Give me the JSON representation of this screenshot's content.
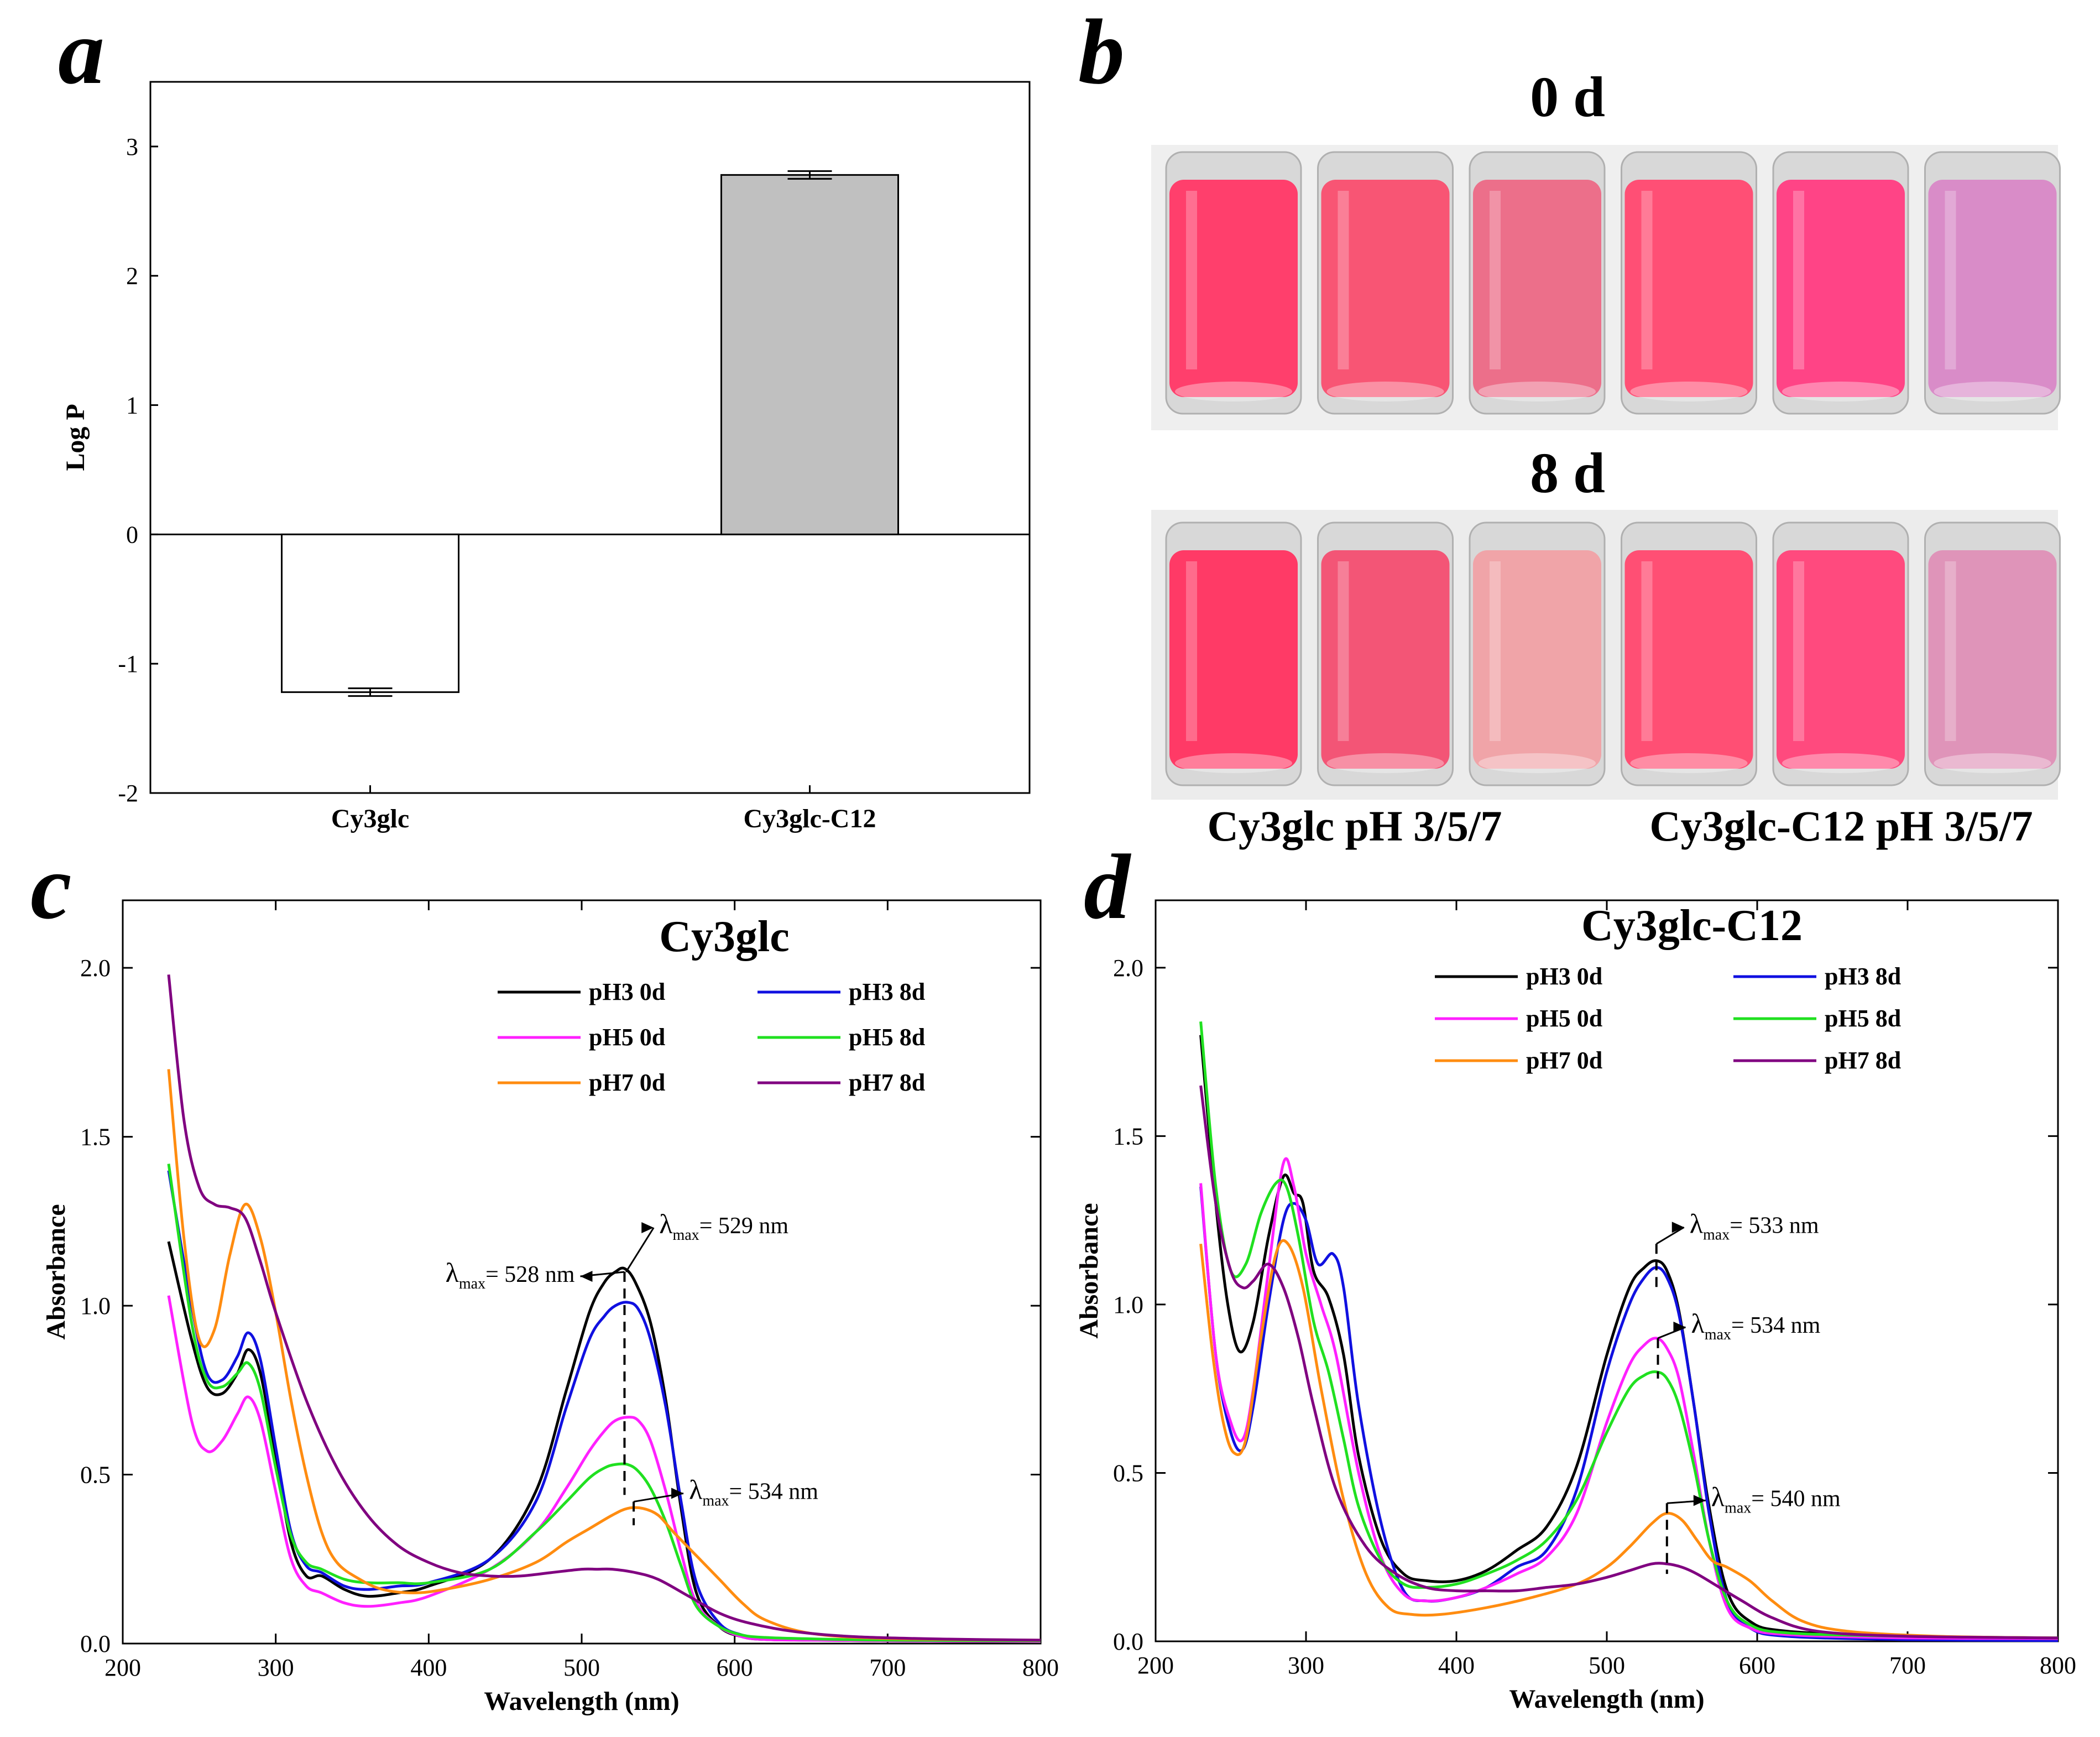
{
  "panels": {
    "a": "a",
    "b": "b",
    "c": "c",
    "d": "d"
  },
  "colors": {
    "pH3_0d": "#000000",
    "pH3_8d": "#1010e0",
    "pH5_0d": "#ff20ff",
    "pH5_8d": "#20e020",
    "pH7_0d": "#ff8c10",
    "pH7_8d": "#800080"
  },
  "photo": {
    "label_0d": "0 d",
    "label_8d": "8 d",
    "caption_left": "Cy3glc pH 3/5/7",
    "caption_right": "Cy3glc-C12 pH 3/5/7",
    "vials_0d": [
      "#ff3f6c",
      "#f85574",
      "#ec6f8a",
      "#ff4f75",
      "#ff4486",
      "#d98cc8"
    ],
    "vials_8d": [
      "#ff3a66",
      "#f35576",
      "#f0a4a8",
      "#ff4f74",
      "#ff4a7e",
      "#df94b9"
    ]
  },
  "chart_data": [
    {
      "id": "a",
      "type": "bar",
      "title": "",
      "xlabel": "",
      "ylabel": "Log P",
      "ylim": [
        -2,
        3.5
      ],
      "yticks": [
        "-2",
        "-1",
        "0",
        "1",
        "2",
        "3"
      ],
      "categories": [
        "Cy3glc",
        "Cy3glc-C12"
      ],
      "values": [
        -1.22,
        2.78
      ],
      "errors": [
        0.03,
        0.03
      ],
      "bar_colors": [
        "#ffffff",
        "#c0c0c0"
      ]
    },
    {
      "id": "c",
      "type": "line",
      "title": "Cy3glc",
      "xlabel": "Wavelength (nm)",
      "ylabel": "Absorbance",
      "xlim": [
        200,
        800
      ],
      "ylim": [
        0,
        2.2
      ],
      "xticks": [
        "200",
        "300",
        "400",
        "500",
        "600",
        "700",
        "800"
      ],
      "yticks": [
        "0.0",
        "0.5",
        "1.0",
        "1.5",
        "2.0"
      ],
      "annotations": [
        {
          "prefix": "λ",
          "sub": "max",
          "suffix": "= 528 nm",
          "x": 528,
          "y": 1.1
        },
        {
          "prefix": "λ",
          "sub": "max",
          "suffix": "= 529 nm",
          "x": 529,
          "y": 1.1
        },
        {
          "prefix": "λ",
          "sub": "max",
          "suffix": "= 534 nm",
          "x": 534,
          "y": 0.42
        }
      ],
      "series": [
        {
          "name": "pH3 0d",
          "color_key": "pH3_0d",
          "x": [
            230,
            245,
            255,
            265,
            275,
            282,
            290,
            300,
            310,
            320,
            330,
            345,
            360,
            380,
            400,
            440,
            470,
            490,
            505,
            515,
            522,
            528,
            535,
            545,
            555,
            565,
            575,
            590,
            605,
            620,
            650,
            700,
            800
          ],
          "y": [
            1.19,
            0.9,
            0.76,
            0.74,
            0.8,
            0.87,
            0.8,
            0.55,
            0.3,
            0.2,
            0.2,
            0.16,
            0.14,
            0.15,
            0.17,
            0.25,
            0.45,
            0.75,
            0.98,
            1.07,
            1.1,
            1.11,
            1.07,
            0.95,
            0.72,
            0.4,
            0.15,
            0.05,
            0.02,
            0.012,
            0.01,
            0.008,
            0.006
          ]
        },
        {
          "name": "pH3 8d",
          "color_key": "pH3_8d",
          "x": [
            230,
            245,
            255,
            265,
            275,
            282,
            290,
            300,
            310,
            320,
            330,
            345,
            360,
            380,
            400,
            440,
            470,
            490,
            505,
            515,
            522,
            530,
            537,
            545,
            555,
            565,
            575,
            590,
            605,
            620,
            650,
            700,
            800
          ],
          "y": [
            1.4,
            1.0,
            0.8,
            0.78,
            0.85,
            0.92,
            0.84,
            0.58,
            0.33,
            0.23,
            0.21,
            0.17,
            0.16,
            0.17,
            0.18,
            0.25,
            0.42,
            0.7,
            0.9,
            0.97,
            1.0,
            1.01,
            0.99,
            0.9,
            0.7,
            0.42,
            0.18,
            0.06,
            0.025,
            0.015,
            0.012,
            0.01,
            0.008
          ]
        },
        {
          "name": "pH5 0d",
          "color_key": "pH5_0d",
          "x": [
            230,
            245,
            255,
            265,
            275,
            282,
            290,
            300,
            310,
            320,
            330,
            345,
            360,
            380,
            400,
            440,
            470,
            490,
            505,
            515,
            522,
            530,
            537,
            545,
            555,
            565,
            575,
            590,
            605,
            620,
            650,
            700,
            800
          ],
          "y": [
            1.03,
            0.66,
            0.57,
            0.6,
            0.68,
            0.73,
            0.66,
            0.45,
            0.25,
            0.17,
            0.15,
            0.12,
            0.11,
            0.12,
            0.14,
            0.22,
            0.33,
            0.46,
            0.57,
            0.63,
            0.66,
            0.67,
            0.66,
            0.6,
            0.45,
            0.27,
            0.12,
            0.05,
            0.02,
            0.012,
            0.01,
            0.008,
            0.006
          ]
        },
        {
          "name": "pH5 8d",
          "color_key": "pH5_8d",
          "x": [
            230,
            245,
            255,
            265,
            275,
            282,
            290,
            300,
            310,
            320,
            330,
            345,
            360,
            380,
            400,
            440,
            470,
            490,
            505,
            515,
            522,
            530,
            537,
            545,
            555,
            565,
            575,
            590,
            605,
            620,
            650,
            700,
            800
          ],
          "y": [
            1.42,
            0.95,
            0.78,
            0.76,
            0.8,
            0.83,
            0.75,
            0.52,
            0.32,
            0.24,
            0.22,
            0.19,
            0.18,
            0.18,
            0.18,
            0.22,
            0.33,
            0.42,
            0.49,
            0.52,
            0.53,
            0.53,
            0.51,
            0.46,
            0.36,
            0.23,
            0.11,
            0.05,
            0.025,
            0.018,
            0.014,
            0.01,
            0.008
          ]
        },
        {
          "name": "pH7 0d",
          "color_key": "pH7_0d",
          "x": [
            230,
            240,
            250,
            260,
            270,
            280,
            290,
            300,
            310,
            320,
            330,
            340,
            355,
            370,
            390,
            410,
            440,
            470,
            490,
            505,
            520,
            530,
            540,
            550,
            560,
            575,
            590,
            605,
            620,
            650,
            700,
            800
          ],
          "y": [
            1.7,
            1.2,
            0.9,
            0.93,
            1.15,
            1.3,
            1.2,
            0.98,
            0.72,
            0.5,
            0.33,
            0.24,
            0.19,
            0.16,
            0.15,
            0.16,
            0.19,
            0.24,
            0.3,
            0.34,
            0.38,
            0.4,
            0.4,
            0.38,
            0.33,
            0.26,
            0.19,
            0.12,
            0.07,
            0.03,
            0.015,
            0.01
          ]
        },
        {
          "name": "pH7 8d",
          "color_key": "pH7_8d",
          "x": [
            230,
            240,
            250,
            260,
            270,
            280,
            290,
            300,
            320,
            340,
            360,
            380,
            400,
            420,
            440,
            460,
            480,
            500,
            510,
            520,
            535,
            550,
            570,
            590,
            610,
            640,
            680,
            740,
            800
          ],
          "y": [
            1.98,
            1.55,
            1.35,
            1.3,
            1.29,
            1.26,
            1.13,
            0.98,
            0.72,
            0.52,
            0.38,
            0.29,
            0.24,
            0.21,
            0.2,
            0.2,
            0.21,
            0.22,
            0.22,
            0.22,
            0.21,
            0.19,
            0.14,
            0.09,
            0.06,
            0.035,
            0.02,
            0.013,
            0.01
          ]
        }
      ],
      "legend": [
        "pH3 0d",
        "pH3 8d",
        "pH5 0d",
        "pH5 8d",
        "pH7 0d",
        "pH7 8d"
      ]
    },
    {
      "id": "d",
      "type": "line",
      "title": "Cy3glc-C12",
      "xlabel": "Wavelength (nm)",
      "ylabel": "Absorbance",
      "xlim": [
        200,
        800
      ],
      "ylim": [
        0,
        2.2
      ],
      "xticks": [
        "200",
        "300",
        "400",
        "500",
        "600",
        "700",
        "800"
      ],
      "yticks": [
        "0.0",
        "0.5",
        "1.0",
        "1.5",
        "2.0"
      ],
      "annotations": [
        {
          "prefix": "λ",
          "sub": "max",
          "suffix": "= 533 nm",
          "x": 533,
          "y": 1.18
        },
        {
          "prefix": "λ",
          "sub": "max",
          "suffix": "= 534 nm",
          "x": 534,
          "y": 0.9
        },
        {
          "prefix": "λ",
          "sub": "max",
          "suffix": "= 540 nm",
          "x": 540,
          "y": 0.41
        }
      ],
      "series": [
        {
          "name": "pH3 0d",
          "color_key": "pH3_0d",
          "x": [
            230,
            240,
            248,
            256,
            265,
            275,
            285,
            292,
            298,
            305,
            315,
            325,
            335,
            350,
            365,
            380,
            400,
            420,
            440,
            460,
            480,
            500,
            515,
            525,
            533,
            540,
            548,
            558,
            568,
            580,
            595,
            620,
            700,
            800
          ],
          "y": [
            1.8,
            1.3,
            1.0,
            0.86,
            0.95,
            1.2,
            1.38,
            1.33,
            1.3,
            1.1,
            1.02,
            0.85,
            0.55,
            0.3,
            0.2,
            0.18,
            0.18,
            0.21,
            0.27,
            0.34,
            0.52,
            0.85,
            1.05,
            1.11,
            1.13,
            1.1,
            0.98,
            0.7,
            0.4,
            0.15,
            0.06,
            0.03,
            0.015,
            0.01
          ]
        },
        {
          "name": "pH3 8d",
          "color_key": "pH3_8d",
          "x": [
            230,
            240,
            250,
            258,
            265,
            275,
            285,
            292,
            300,
            308,
            318,
            325,
            335,
            350,
            365,
            380,
            400,
            420,
            440,
            460,
            480,
            500,
            515,
            525,
            533,
            540,
            548,
            558,
            568,
            580,
            595,
            620,
            700,
            800
          ],
          "y": [
            1.35,
            0.85,
            0.62,
            0.57,
            0.7,
            1.0,
            1.25,
            1.3,
            1.25,
            1.12,
            1.15,
            1.05,
            0.7,
            0.35,
            0.15,
            0.12,
            0.13,
            0.16,
            0.22,
            0.27,
            0.45,
            0.8,
            1.0,
            1.08,
            1.11,
            1.08,
            0.97,
            0.7,
            0.38,
            0.12,
            0.04,
            0.015,
            0.005,
            0.002
          ]
        },
        {
          "name": "pH5 0d",
          "color_key": "pH5_0d",
          "x": [
            230,
            240,
            250,
            258,
            265,
            275,
            285,
            292,
            300,
            310,
            320,
            335,
            350,
            365,
            380,
            400,
            420,
            440,
            460,
            480,
            500,
            515,
            525,
            533,
            540,
            548,
            558,
            568,
            580,
            595,
            620,
            700,
            800
          ],
          "y": [
            1.36,
            0.85,
            0.65,
            0.6,
            0.75,
            1.1,
            1.42,
            1.35,
            1.15,
            1.0,
            0.85,
            0.5,
            0.25,
            0.14,
            0.12,
            0.13,
            0.16,
            0.2,
            0.25,
            0.38,
            0.65,
            0.82,
            0.88,
            0.9,
            0.87,
            0.78,
            0.55,
            0.3,
            0.1,
            0.04,
            0.02,
            0.01,
            0.008
          ]
        },
        {
          "name": "pH5 8d",
          "color_key": "pH5_8d",
          "x": [
            230,
            240,
            250,
            260,
            270,
            280,
            287,
            295,
            305,
            315,
            325,
            335,
            350,
            365,
            380,
            400,
            420,
            440,
            460,
            480,
            500,
            515,
            525,
            533,
            540,
            548,
            558,
            568,
            580,
            595,
            620,
            700,
            800
          ],
          "y": [
            1.84,
            1.35,
            1.1,
            1.12,
            1.27,
            1.36,
            1.35,
            1.2,
            0.95,
            0.8,
            0.6,
            0.4,
            0.24,
            0.17,
            0.16,
            0.17,
            0.2,
            0.24,
            0.3,
            0.42,
            0.62,
            0.75,
            0.79,
            0.8,
            0.78,
            0.7,
            0.52,
            0.3,
            0.12,
            0.05,
            0.025,
            0.015,
            0.01
          ]
        },
        {
          "name": "pH7 0d",
          "color_key": "pH7_0d",
          "x": [
            230,
            238,
            245,
            252,
            260,
            270,
            280,
            288,
            298,
            310,
            325,
            340,
            355,
            370,
            390,
            420,
            450,
            480,
            500,
            515,
            530,
            540,
            550,
            560,
            570,
            580,
            595,
            610,
            630,
            660,
            720,
            800
          ],
          "y": [
            1.18,
            0.85,
            0.65,
            0.56,
            0.6,
            0.9,
            1.15,
            1.18,
            1.05,
            0.75,
            0.42,
            0.2,
            0.1,
            0.08,
            0.08,
            0.1,
            0.13,
            0.17,
            0.22,
            0.28,
            0.35,
            0.38,
            0.36,
            0.3,
            0.24,
            0.22,
            0.18,
            0.12,
            0.06,
            0.03,
            0.015,
            0.01
          ]
        },
        {
          "name": "pH7 8d",
          "color_key": "pH7_8d",
          "x": [
            230,
            240,
            250,
            258,
            265,
            275,
            285,
            295,
            305,
            320,
            340,
            360,
            380,
            400,
            420,
            440,
            460,
            480,
            500,
            515,
            530,
            540,
            550,
            560,
            575,
            590,
            610,
            640,
            700,
            800
          ],
          "y": [
            1.65,
            1.3,
            1.1,
            1.05,
            1.07,
            1.12,
            1.05,
            0.9,
            0.7,
            0.45,
            0.28,
            0.2,
            0.16,
            0.15,
            0.15,
            0.15,
            0.16,
            0.17,
            0.19,
            0.21,
            0.23,
            0.23,
            0.22,
            0.2,
            0.16,
            0.12,
            0.07,
            0.03,
            0.015,
            0.01
          ]
        }
      ],
      "legend": [
        "pH3 0d",
        "pH3 8d",
        "pH5 0d",
        "pH5 8d",
        "pH7 0d",
        "pH7 8d"
      ]
    }
  ]
}
